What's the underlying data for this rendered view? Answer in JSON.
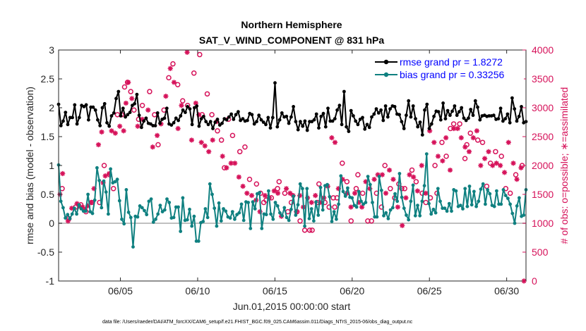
{
  "chart_data": {
    "type": "line",
    "title": "Northern Hemisphere",
    "subtitle": "SAT_V_WIND_COMPONENT @ 831 hPa",
    "xlabel": "Jun.01,2015 00:00:00 start",
    "ylabel": "rmse and bias (model - observation)",
    "ylabel_right": "# of obs: o=possible; ∗=assimilated",
    "footnote": "data file: /Users/raeder/DAI/ATM_forcXX/CAM6_setup/f.e21.FHIST_BGC.f09_025.CAM6assim.011/Diags_NTrS_2015-06/obs_diag_output.nc",
    "xlim": [
      1,
      31.25
    ],
    "ylim": [
      -1,
      3
    ],
    "ylim_right": [
      0,
      4000
    ],
    "x_ticks": [
      5,
      10,
      15,
      20,
      25,
      30
    ],
    "x_tick_labels": [
      "06/05",
      "06/10",
      "06/15",
      "06/20",
      "06/25",
      "06/30"
    ],
    "y_ticks": [
      -1,
      -0.5,
      0,
      0.5,
      1,
      1.5,
      2,
      2.5,
      3
    ],
    "y_tick_labels": [
      "-1",
      "-0.5",
      "0",
      "0.5",
      "1",
      "1.5",
      "2",
      "2.5",
      "3"
    ],
    "y_right_ticks": [
      0,
      500,
      1000,
      1500,
      2000,
      2500,
      3000,
      3500,
      4000
    ],
    "y_right_tick_labels": [
      "0",
      "500",
      "1000",
      "1500",
      "2000",
      "2500",
      "3000",
      "3500",
      "4000"
    ],
    "legend_position": "top-right",
    "colors": {
      "rmse": "#000000",
      "bias": "#0f8080",
      "obs": "#d6125a",
      "zero_line": "#c0c0c0"
    },
    "series": [
      {
        "name": "rmse grand pr = 1.8272",
        "axis": "left",
        "marker": "filled-circle",
        "values": [
          2.06,
          1.69,
          1.77,
          1.92,
          1.71,
          1.83,
          1.83,
          2.05,
          1.72,
          1.83,
          2.04,
          2.02,
          2.05,
          1.79,
          2.01,
          2.01,
          1.96,
          1.79,
          1.69,
          2.0,
          2.07,
          1.74,
          1.68,
          1.86,
          1.91,
          2.16,
          2.28,
          1.86,
          1.99,
          1.84,
          1.88,
          1.92,
          2.04,
          2.07,
          2.23,
          1.87,
          1.66,
          1.77,
          1.82,
          1.73,
          1.72,
          1.69,
          1.69,
          1.91,
          1.73,
          1.8,
          1.82,
          1.99,
          1.72,
          1.7,
          1.74,
          1.82,
          1.78,
          1.86,
          1.96,
          1.92,
          2.02,
          1.98,
          1.71,
          2.0,
          2.03,
          1.68,
          1.81,
          1.85,
          1.76,
          1.71,
          1.76,
          1.64,
          1.75,
          1.8,
          1.7,
          1.73,
          1.81,
          1.79,
          1.84,
          1.89,
          1.8,
          1.88,
          1.93,
          1.78,
          1.81,
          1.77,
          1.78,
          1.9,
          1.88,
          1.72,
          1.76,
          1.87,
          1.79,
          1.75,
          1.71,
          1.83,
          1.65,
          1.83,
          2.43,
          1.67,
          1.79,
          1.91,
          1.84,
          1.85,
          1.73,
          1.84,
          2.02,
          1.76,
          1.62,
          1.76,
          1.68,
          1.77,
          1.61,
          1.76,
          1.76,
          1.79,
          1.89,
          1.65,
          1.85,
          1.9,
          1.67,
          1.99,
          1.77,
          1.77,
          1.81,
          1.96,
          2.04,
          1.71,
          2.28,
          1.67,
          1.59,
          1.95,
          1.86,
          1.77,
          1.71,
          1.8,
          1.83,
          1.63,
          1.71,
          1.66,
          1.84,
          1.89,
          1.98,
          1.91,
          1.96,
          1.78,
          2.03,
          1.84,
          1.98,
          2.03,
          2.02,
          1.89,
          1.88,
          1.76,
          1.64,
          1.87,
          2.12,
          1.84,
          2.03,
          1.81,
          1.67,
          1.75,
          1.53,
          1.96,
          2.06,
          1.64,
          1.72,
          1.85,
          1.94,
          1.93,
          1.79,
          2.08,
          1.81,
          1.95,
          1.87,
          1.94,
          2.03,
          1.87,
          1.93,
          2.0,
          1.82,
          1.78,
          1.82,
          1.97,
          1.87,
          2.12,
          2.01,
          1.79,
          1.86,
          1.87,
          1.85,
          1.86,
          1.86,
          1.87,
          1.8,
          1.81,
          1.99,
          1.77,
          1.81,
          1.89,
          1.74,
          2.17,
          1.98,
          1.77,
          1.85,
          2.02,
          1.74,
          1.76
        ]
      },
      {
        "name": "bias grand pr = 0.33256",
        "axis": "left",
        "marker": "filled-circle",
        "values": [
          1.01,
          0.38,
          0.27,
          0.09,
          0.15,
          0.08,
          0.16,
          0.26,
          0.16,
          0.32,
          0.25,
          0.21,
          0.21,
          0.5,
          0.2,
          0.17,
          0.4,
          0.96,
          0.74,
          0.27,
          0.73,
          0.54,
          0.16,
          0.94,
          0.7,
          0.72,
          0.76,
          0.39,
          0.07,
          -0.01,
          0.58,
          0.19,
          0.1,
          -0.41,
          0.12,
          0.11,
          0.3,
          0.27,
          0.22,
          0.15,
          0.38,
          0.42,
          0.02,
          0.07,
          0.16,
          0.31,
          0.2,
          0.23,
          0.42,
          0.36,
          0.09,
          0.1,
          0.28,
          0.28,
          -0.14,
          0.44,
          0.05,
          0.06,
          0.24,
          -0.05,
          0.12,
          -0.31,
          -0.31,
          0.01,
          0.03,
          0.25,
          0.1,
          0.68,
          0.5,
          0.26,
          -0.05,
          0.35,
          0.04,
          0.25,
          0.21,
          0.11,
          0.09,
          0.2,
          0.07,
          0.15,
          0.18,
          0.33,
          0.05,
          0.37,
          0.36,
          -0.09,
          0.37,
          0.25,
          0.51,
          0.53,
          -0.09,
          0.16,
          0.15,
          0.56,
          0.16,
          0.07,
          0.36,
          0.3,
          0.18,
          0.13,
          0.27,
          0.1,
          0.05,
          0.24,
          0.47,
          0.14,
          0.32,
          0.68,
          0.6,
          -0.05,
          0.6,
          0.08,
          0.25,
          0.04,
          0.37,
          0.14,
          0.62,
          0.23,
          0.65,
          0.67,
          0.46,
          0.03,
          0.2,
          0.07,
          0.33,
          0.82,
          0.55,
          0.47,
          0.61,
          0.45,
          0.44,
          0.31,
          0.28,
          0.55,
          0.38,
          0.33,
          0.36,
          0.81,
          0.67,
          0.36,
          0.11,
          0.11,
          0.81,
          0.57,
          0.13,
          0.18,
          0.08,
          0.23,
          0.27,
          0.51,
          0.38,
          0.86,
          0.45,
          0.26,
          0.14,
          0.06,
          0.38,
          0.66,
          0.13,
          0.31,
          0.13,
          0.38,
          0.65,
          1.2,
          0.34,
          0.16,
          0.24,
          0.18,
          0.6,
          0.38,
          0.26,
          0.26,
          0.21,
          0.34,
          0.21,
          0.58,
          0.56,
          0.29,
          0.31,
          0.25,
          0.6,
          0.29,
          0.64,
          0.32,
          0.55,
          0.29,
          0.38,
          0.59,
          0.68,
          0.33,
          0.58,
          0.51,
          0.31,
          0.29,
          0.56,
          0.33,
          0.33,
          0.58,
          0.48,
          0.43,
          0.33,
          0.17,
          0.0,
          0.3,
          0.44,
          0.12,
          0.14,
          0.58
        ]
      },
      {
        "name": "# of obs: possible",
        "axis": "right",
        "marker": "open-circle",
        "x": [
          1.23,
          1.67,
          2.1,
          2.44,
          2.77,
          3.14,
          3.65,
          3.95,
          4.3,
          4.55,
          4.81,
          5.08,
          5.27,
          5.46,
          5.67,
          5.88,
          6.18,
          6.42,
          6.89,
          7.21,
          7.44,
          7.82,
          8.13,
          8.4,
          8.71,
          9.03,
          9.35,
          9.76,
          10.13,
          10.29,
          10.62,
          10.92,
          11.28,
          11.54,
          11.73,
          11.99,
          12.26,
          12.73,
          13.06,
          13.36,
          13.81,
          14.07,
          14.28,
          14.43,
          14.77,
          15.17,
          15.27,
          15.64,
          15.84,
          16.06,
          16.43,
          16.63,
          16.93,
          17.25,
          17.41,
          17.73,
          17.85,
          18.24,
          18.51,
          18.78,
          18.87,
          19.02,
          19.36,
          19.66,
          19.93,
          20.26,
          20.37,
          20.68,
          21.01,
          21.25,
          21.58,
          21.9,
          22.12,
          22.47,
          22.75,
          23.02,
          23.21,
          23.4,
          23.87,
          24.14,
          24.54,
          24.77,
          25.06,
          25.36,
          25.49,
          25.81,
          26.09,
          26.36,
          26.57,
          26.96,
          27.3,
          27.42,
          27.65,
          28.13,
          28.44,
          28.71,
          28.95,
          29.28,
          29.66,
          29.94,
          30.23,
          30.59,
          31.0
        ],
        "y": [
          1600,
          1080,
          1280,
          1320,
          1200,
          1360,
          1360,
          2000,
          1840,
          1600,
          2880,
          2880,
          3360,
          3440,
          3280,
          2960,
          2800,
          3040,
          3280,
          2880,
          2360,
          2960,
          3520,
          3760,
          3400,
          3120,
          3040,
          3600,
          3920,
          2880,
          3240,
          2880,
          2600,
          2440,
          1960,
          2800,
          2520,
          2240,
          2320,
          1760,
          1680,
          1520,
          1360,
          1400,
          1440,
          1600,
          1720,
          1520,
          1200,
          1360,
          1200,
          1040,
          880,
          880,
          880,
          1360,
          1680,
          1360,
          1280,
          1440,
          1280,
          1440,
          2040,
          1720,
          1040,
          1600,
          1840,
          1520,
          1040,
          1040,
          1520,
          1280,
          2000,
          1600,
          1440,
          1680,
          1600,
          1600,
          1920,
          1720,
          1520,
          1360,
          1440,
          2000,
          1520,
          2400,
          2160,
          2640,
          2720,
          2720,
          2120,
          2360,
          2560,
          2440,
          2400,
          1640,
          2040,
          2240,
          2160,
          1600,
          1520,
          1840,
          2000
        ]
      },
      {
        "name": "# of obs: assimilated",
        "axis": "right",
        "marker": "asterisk",
        "x": [
          1.09,
          1.26,
          1.61,
          1.85,
          2.19,
          2.33,
          2.55,
          2.71,
          2.89,
          3.11,
          3.29,
          3.58,
          3.79,
          3.88,
          4.02,
          4.27,
          4.43,
          4.67,
          4.96,
          5.21,
          5.36,
          5.51,
          5.74,
          6.12,
          6.41,
          6.79,
          7.09,
          7.38,
          7.63,
          7.94,
          8.23,
          8.47,
          8.73,
          8.95,
          9.32,
          9.61,
          9.88,
          10.08,
          10.24,
          10.47,
          10.72,
          10.97,
          11.24,
          11.61,
          11.87,
          12.16,
          12.41,
          12.67,
          12.93,
          13.19,
          13.5,
          13.78,
          14.03,
          14.36,
          14.64,
          14.95,
          15.19,
          15.42,
          15.74,
          15.98,
          16.18,
          16.39,
          16.61,
          16.84,
          17.11,
          17.37,
          17.62,
          17.93,
          18.17,
          18.42,
          18.68,
          18.89,
          19.11,
          19.38,
          19.67,
          19.92,
          20.17,
          20.44,
          20.63,
          20.88,
          21.14,
          21.43,
          21.66,
          21.95,
          22.18,
          22.41,
          22.66,
          22.95,
          23.24,
          23.48,
          23.71,
          23.97,
          24.23,
          24.5,
          24.77,
          25.02,
          25.3,
          25.56,
          25.85,
          26.07,
          26.34,
          26.58,
          26.83,
          27.06,
          27.31,
          27.57,
          27.84,
          28.07,
          28.32,
          28.58,
          28.83,
          29.09,
          29.34,
          29.59,
          29.86,
          30.12,
          30.43,
          30.66,
          30.93,
          31.12
        ],
        "y": [
          1500,
          1860,
          1040,
          1260,
          1340,
          1300,
          1280,
          1240,
          1300,
          1360,
          1600,
          2360,
          2580,
          1700,
          1820,
          1860,
          2600,
          2560,
          2680,
          2600,
          3080,
          3440,
          3160,
          2680,
          2800,
          2960,
          2320,
          2520,
          2720,
          3200,
          3680,
          3440,
          2640,
          3040,
          3960,
          2440,
          3080,
          2880,
          2400,
          2340,
          2240,
          2440,
          2760,
          2160,
          1960,
          2040,
          2040,
          1800,
          1640,
          1520,
          1480,
          1400,
          1200,
          1480,
          1440,
          1560,
          1520,
          1120,
          1600,
          1520,
          1480,
          1200,
          1480,
          1280,
          1440,
          1360,
          1480,
          1360,
          1440,
          1640,
          2480,
          2400,
          1600,
          1760,
          1520,
          1280,
          1520,
          1360,
          1280,
          1720,
          1600,
          1760,
          1840,
          1840,
          1520,
          1920,
          1760,
          1280,
          960,
          1440,
          1840,
          1800,
          1560,
          2000,
          1520,
          2600,
          2400,
          2160,
          2080,
          2480,
          1920,
          2640,
          2640,
          2480,
          2320,
          2240,
          2480,
          2600,
          2000,
          2120,
          2240,
          2000,
          2040,
          2000,
          1880,
          2400,
          2040,
          1760,
          1960,
          0
        ]
      }
    ]
  }
}
